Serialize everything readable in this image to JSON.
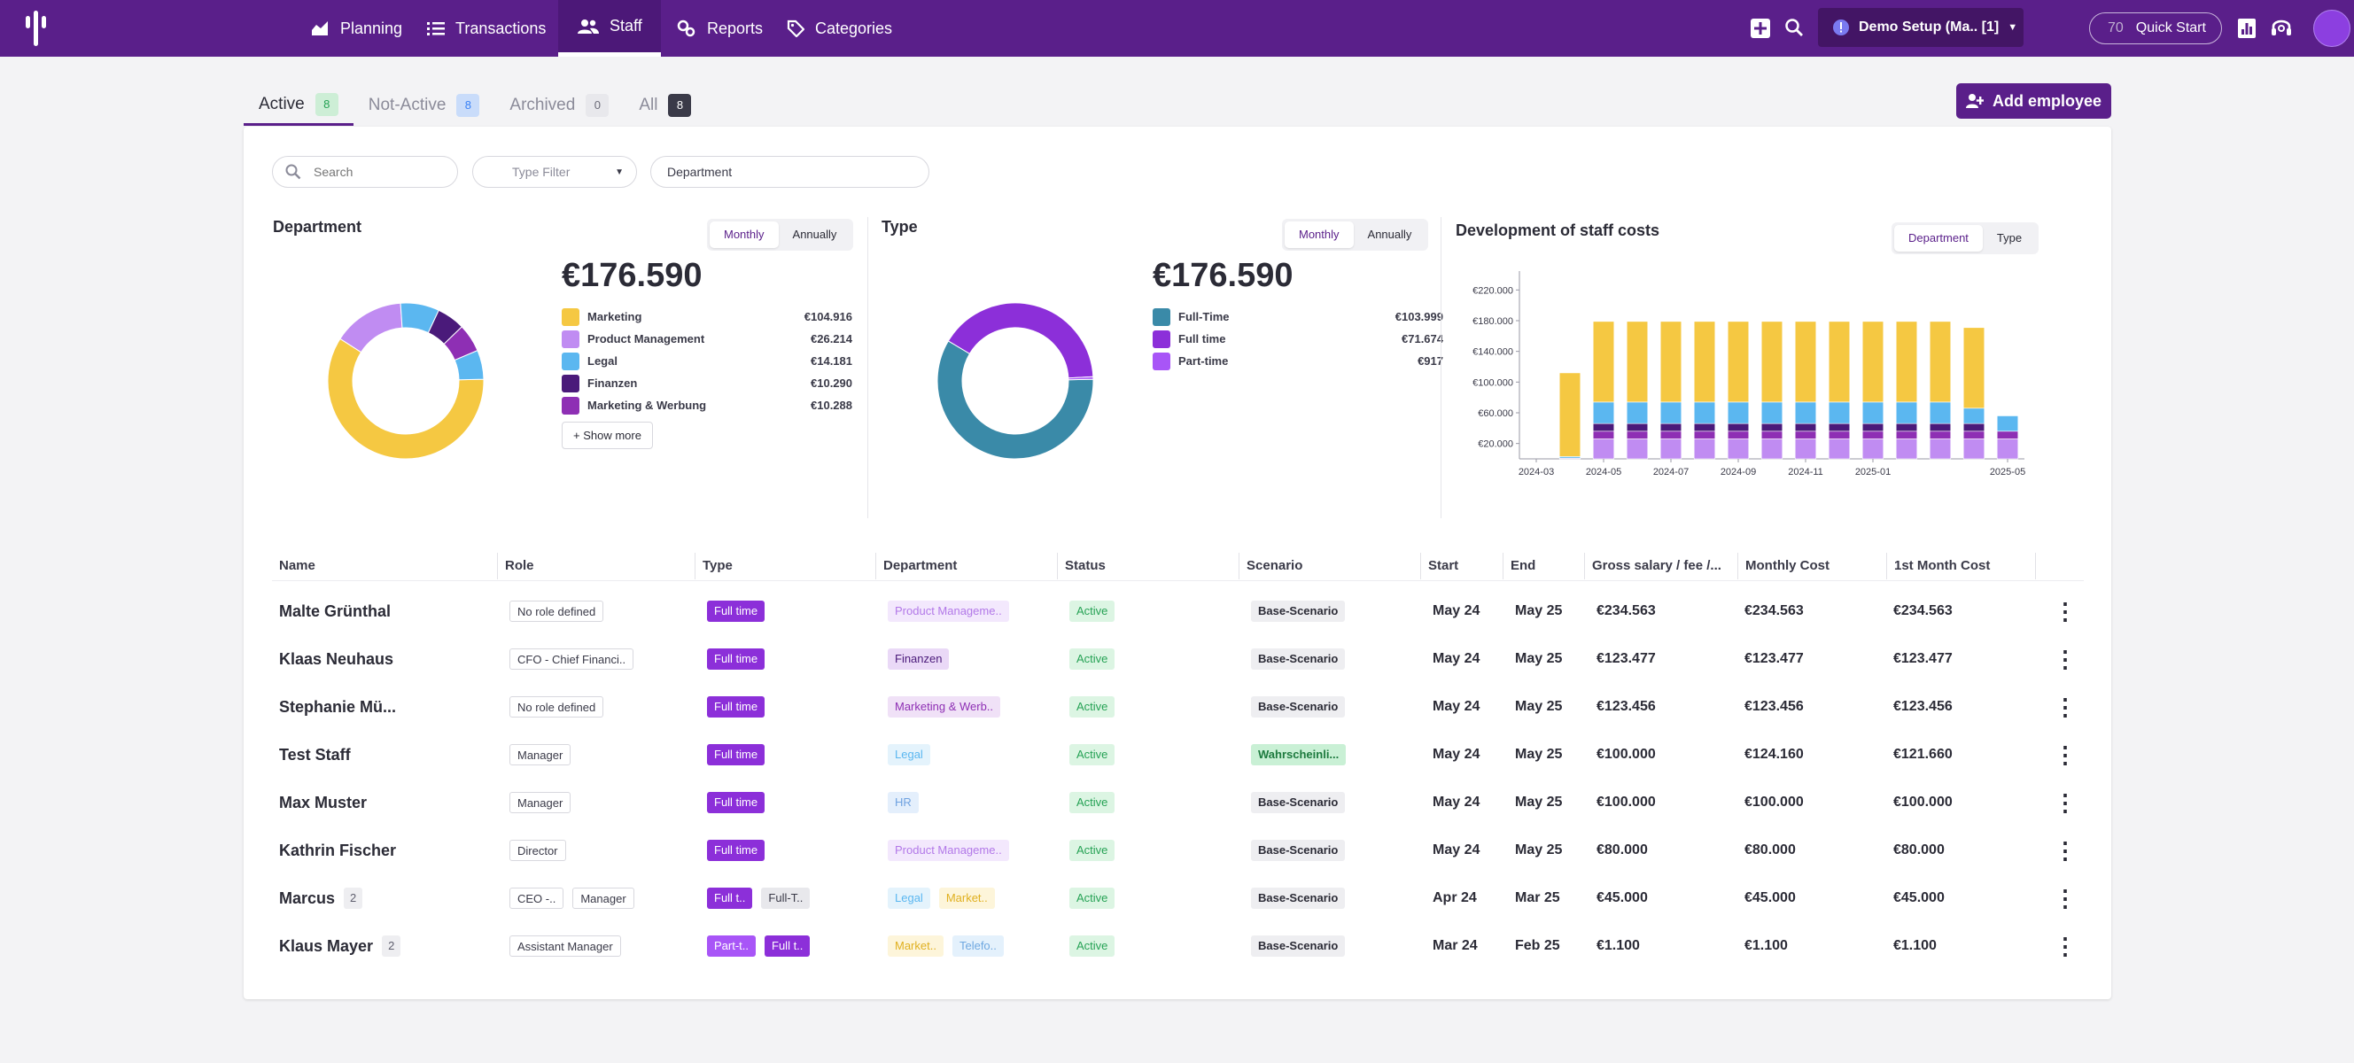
{
  "nav": {
    "items": [
      {
        "label": "Planning",
        "icon": "chart-area-icon"
      },
      {
        "label": "Transactions",
        "icon": "list-icon"
      },
      {
        "label": "Staff",
        "icon": "users-icon"
      },
      {
        "label": "Reports",
        "icon": "reports-icon"
      },
      {
        "label": "Categories",
        "icon": "tag-icon"
      }
    ],
    "active": "Staff",
    "setup_label": "Demo Setup (Ma.. [1]",
    "quickstart_count": "70",
    "quickstart_label": "Quick Start"
  },
  "tabs": [
    {
      "label": "Active",
      "count": "8",
      "count_bg": "#cdeed6",
      "count_color": "#26a255"
    },
    {
      "label": "Not-Active",
      "count": "8",
      "count_bg": "#c9dcfa",
      "count_color": "#3b82f6"
    },
    {
      "label": "Archived",
      "count": "0",
      "count_bg": "#e8e8ec",
      "count_color": "#6b6b78"
    },
    {
      "label": "All",
      "count": "8",
      "count_bg": "#3a3a48",
      "count_color": "#ffffff"
    }
  ],
  "add_employee": "Add employee",
  "filters": {
    "search_placeholder": "Search",
    "type_filter": "Type Filter",
    "department": "Department"
  },
  "department_panel": {
    "title": "Department",
    "toggle": [
      "Monthly",
      "Annually"
    ],
    "total": "€176.590",
    "legend": [
      {
        "label": "Marketing",
        "value": "€104.916",
        "amount": 104916,
        "color": "#f5c842"
      },
      {
        "label": "Product Management",
        "value": "€26.214",
        "amount": 26214,
        "color": "#c08cf2"
      },
      {
        "label": "Legal",
        "value": "€14.181",
        "amount": 14181,
        "color": "#5bb7f0"
      },
      {
        "label": "Finanzen",
        "value": "€10.290",
        "amount": 10290,
        "color": "#4a1a7a"
      },
      {
        "label": "Marketing & Werbung",
        "value": "€10.288",
        "amount": 10288,
        "color": "#8e2fb4"
      }
    ],
    "show_more": "+ Show more"
  },
  "type_panel": {
    "title": "Type",
    "toggle": [
      "Monthly",
      "Annually"
    ],
    "total": "€176.590",
    "legend": [
      {
        "label": "Full-Time",
        "value": "€103.999",
        "amount": 103999,
        "color": "#3a8aa8"
      },
      {
        "label": "Full time",
        "value": "€71.674",
        "amount": 71674,
        "color": "#8c2fd9"
      },
      {
        "label": "Part-time",
        "value": "€917",
        "amount": 917,
        "color": "#a855f7"
      }
    ]
  },
  "costs_panel": {
    "title": "Development of staff costs",
    "toggle": [
      "Department",
      "Type"
    ]
  },
  "chart_data": {
    "type": "bar",
    "stacked": true,
    "y_ticks": [
      "€20.000",
      "€60.000",
      "€100.000",
      "€140.000",
      "€180.000",
      "€220.000"
    ],
    "y_tick_values": [
      20000,
      60000,
      100000,
      140000,
      180000,
      220000
    ],
    "ylim": [
      0,
      225000
    ],
    "x_tick_labels": [
      "2024-03",
      "2024-05",
      "2024-07",
      "2024-09",
      "2024-11",
      "2025-01",
      "2025-05"
    ],
    "categories": [
      "2024-03",
      "2024-04",
      "2024-05",
      "2024-06",
      "2024-07",
      "2024-08",
      "2024-09",
      "2024-10",
      "2024-11",
      "2024-12",
      "2025-01",
      "2025-02",
      "2025-03",
      "2025-04",
      "2025-05"
    ],
    "series": [
      {
        "color": "#c08cf2",
        "values": [
          0,
          1000,
          26000,
          26000,
          26000,
          26000,
          26000,
          26000,
          26000,
          26000,
          26000,
          26000,
          26000,
          26000,
          26000
        ]
      },
      {
        "color": "#8e2fb4",
        "values": [
          0,
          0,
          10000,
          10000,
          10000,
          10000,
          10000,
          10000,
          10000,
          10000,
          10000,
          10000,
          10000,
          10000,
          10000
        ]
      },
      {
        "color": "#4a1a7a",
        "values": [
          0,
          0,
          10000,
          10000,
          10000,
          10000,
          10000,
          10000,
          10000,
          10000,
          10000,
          10000,
          10000,
          10000,
          0
        ]
      },
      {
        "color": "#5bb7f0",
        "values": [
          0,
          2000,
          28000,
          28000,
          28000,
          28000,
          28000,
          28000,
          28000,
          28000,
          28000,
          28000,
          28000,
          20000,
          20000
        ]
      },
      {
        "color": "#f5c842",
        "values": [
          0,
          109000,
          105000,
          105000,
          105000,
          105000,
          105000,
          105000,
          105000,
          105000,
          105000,
          105000,
          105000,
          105000,
          0
        ]
      }
    ]
  },
  "table": {
    "columns": [
      "Name",
      "Role",
      "Type",
      "Department",
      "Status",
      "Scenario",
      "Start",
      "End",
      "Gross salary / fee /...",
      "Monthly Cost",
      "1st Month Cost"
    ],
    "rows": [
      {
        "name": "Malte Grünthal",
        "count": "",
        "roles": [
          "No role defined"
        ],
        "types": [
          {
            "t": "Full time",
            "k": "ft"
          }
        ],
        "deps": [
          {
            "t": "Product Manageme..",
            "bg": "#f3e8fd",
            "c": "#b278e8"
          }
        ],
        "status": "Active",
        "scenario": {
          "t": "Base-Scenario",
          "k": "sc"
        },
        "start": "May 24",
        "end": "May 25",
        "gross": "€234.563",
        "monthly": "€234.563",
        "first": "€234.563"
      },
      {
        "name": "Klaas Neuhaus",
        "count": "",
        "roles": [
          "CFO - Chief Financi.."
        ],
        "types": [
          {
            "t": "Full time",
            "k": "ft"
          }
        ],
        "deps": [
          {
            "t": "Finanzen",
            "bg": "#ead9f7",
            "c": "#4a1a7a"
          }
        ],
        "status": "Active",
        "scenario": {
          "t": "Base-Scenario",
          "k": "sc"
        },
        "start": "May 24",
        "end": "May 25",
        "gross": "€123.477",
        "monthly": "€123.477",
        "first": "€123.477"
      },
      {
        "name": "Stephanie Mü...",
        "count": "",
        "roles": [
          "No role defined"
        ],
        "types": [
          {
            "t": "Full time",
            "k": "ft"
          }
        ],
        "deps": [
          {
            "t": "Marketing & Werb..",
            "bg": "#f0e1f7",
            "c": "#8e2fb4"
          }
        ],
        "status": "Active",
        "scenario": {
          "t": "Base-Scenario",
          "k": "sc"
        },
        "start": "May 24",
        "end": "May 25",
        "gross": "€123.456",
        "monthly": "€123.456",
        "first": "€123.456"
      },
      {
        "name": "Test Staff",
        "count": "",
        "roles": [
          "Manager"
        ],
        "types": [
          {
            "t": "Full time",
            "k": "ft"
          }
        ],
        "deps": [
          {
            "t": "Legal",
            "bg": "#e4f3fc",
            "c": "#5bb7f0"
          }
        ],
        "status": "Active",
        "scenario": {
          "t": "Wahrscheinli...",
          "k": "scg"
        },
        "start": "May 24",
        "end": "May 25",
        "gross": "€100.000",
        "monthly": "€124.160",
        "first": "€121.660"
      },
      {
        "name": "Max Muster",
        "count": "",
        "roles": [
          "Manager"
        ],
        "types": [
          {
            "t": "Full time",
            "k": "ft"
          }
        ],
        "deps": [
          {
            "t": "HR",
            "bg": "#e4effc",
            "c": "#6fa2e0"
          }
        ],
        "status": "Active",
        "scenario": {
          "t": "Base-Scenario",
          "k": "sc"
        },
        "start": "May 24",
        "end": "May 25",
        "gross": "€100.000",
        "monthly": "€100.000",
        "first": "€100.000"
      },
      {
        "name": "Kathrin Fischer",
        "count": "",
        "roles": [
          "Director"
        ],
        "types": [
          {
            "t": "Full time",
            "k": "ft"
          }
        ],
        "deps": [
          {
            "t": "Product Manageme..",
            "bg": "#f3e8fd",
            "c": "#b278e8"
          }
        ],
        "status": "Active",
        "scenario": {
          "t": "Base-Scenario",
          "k": "sc"
        },
        "start": "May 24",
        "end": "May 25",
        "gross": "€80.000",
        "monthly": "€80.000",
        "first": "€80.000"
      },
      {
        "name": "Marcus",
        "count": "2",
        "roles": [
          "CEO -..",
          "Manager"
        ],
        "types": [
          {
            "t": "Full t..",
            "k": "ft"
          },
          {
            "t": "Full-T..",
            "k": "ftg"
          }
        ],
        "deps": [
          {
            "t": "Legal",
            "bg": "#e4f3fc",
            "c": "#5bb7f0"
          },
          {
            "t": "Market..",
            "bg": "#fdf5da",
            "c": "#e0b020"
          }
        ],
        "status": "Active",
        "scenario": {
          "t": "Base-Scenario",
          "k": "sc"
        },
        "start": "Apr 24",
        "end": "Mar 25",
        "gross": "€45.000",
        "monthly": "€45.000",
        "first": "€45.000"
      },
      {
        "name": "Klaus Mayer",
        "count": "2",
        "roles": [
          "Assistant Manager"
        ],
        "types": [
          {
            "t": "Part-t..",
            "k": "pt"
          },
          {
            "t": "Full t..",
            "k": "ft"
          }
        ],
        "deps": [
          {
            "t": "Market..",
            "bg": "#fdf5da",
            "c": "#e0b020"
          },
          {
            "t": "Telefo..",
            "bg": "#e4f1fc",
            "c": "#6fa8e0"
          }
        ],
        "status": "Active",
        "scenario": {
          "t": "Base-Scenario",
          "k": "sc"
        },
        "start": "Mar 24",
        "end": "Feb 25",
        "gross": "€1.100",
        "monthly": "€1.100",
        "first": "€1.100"
      }
    ]
  }
}
